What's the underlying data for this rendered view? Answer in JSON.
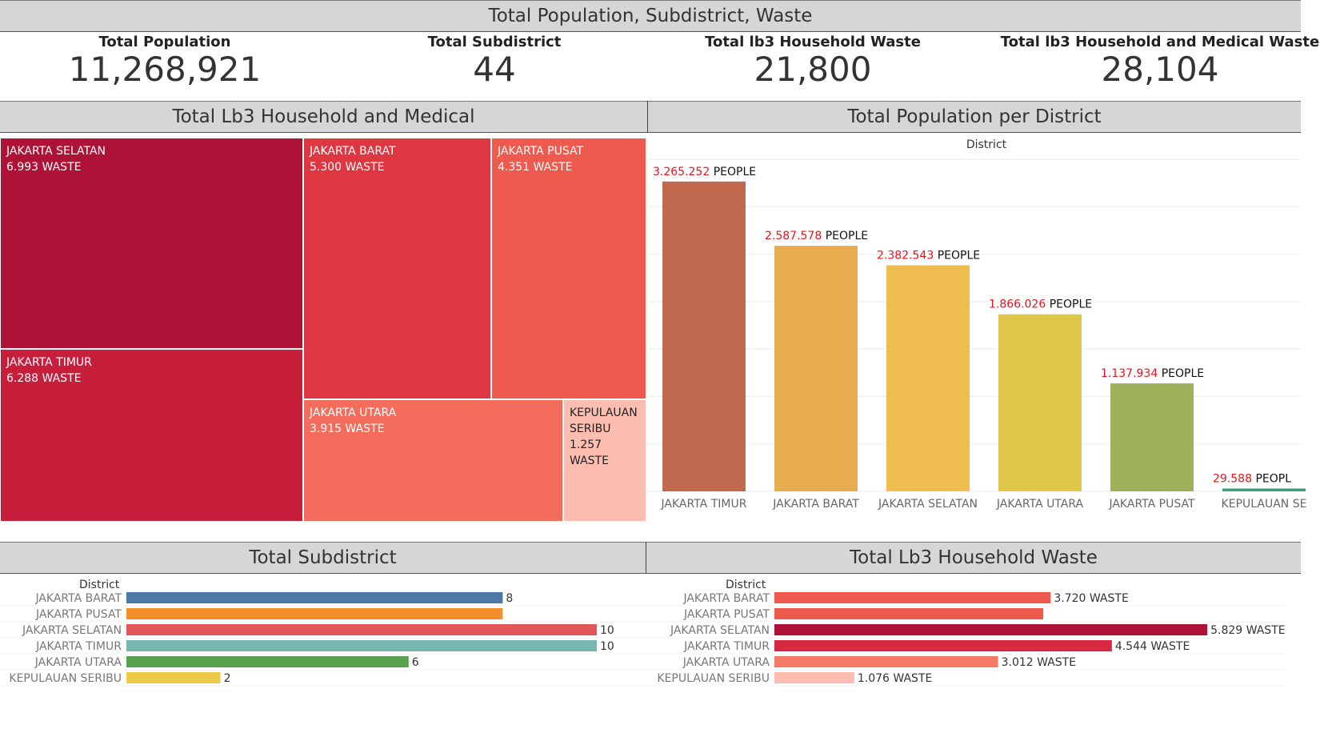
{
  "header": {
    "title": "Total Population, Subdistrict, Waste"
  },
  "kpis": [
    {
      "label": "Total Population",
      "value": "11,268,921"
    },
    {
      "label": "Total Subdistrict",
      "value": "44"
    },
    {
      "label": "Total lb3 Household Waste",
      "value": "21,800"
    },
    {
      "label": "Total lb3 Household and Medical Waste",
      "value": "28,104"
    }
  ],
  "panels": {
    "treemap_title": "Total Lb3 Household and Medical",
    "population_title": "Total Population per District",
    "subdistrict_title": "Total Subdistrict",
    "waste_title": "Total Lb3 Household Waste"
  },
  "colors": {
    "header_bg": "#d6d6d6",
    "label_red": "#e8141d",
    "treemap": {
      "JAKARTA SELATAN": "#ae1236",
      "JAKARTA TIMUR": "#c61e3b",
      "JAKARTA BARAT": "#df3742",
      "JAKARTA PUSAT": "#ee5a4d",
      "JAKARTA UTARA": "#f46c5c",
      "KEPULAUAN SERIBU": "#fdbdb0"
    }
  },
  "chart_data": [
    {
      "type": "treemap",
      "title": "Total Lb3 Household and Medical",
      "categories": [
        "JAKARTA SELATAN",
        "JAKARTA TIMUR",
        "JAKARTA BARAT",
        "JAKARTA PUSAT",
        "JAKARTA UTARA",
        "KEPULAUAN SERIBU"
      ],
      "values": [
        6993,
        6288,
        5300,
        4351,
        3915,
        1257
      ],
      "labels": [
        "6.993 WASTE",
        "6.288 WASTE",
        "5.300 WASTE",
        "4.351 WASTE",
        "3.915 WASTE",
        "1.257 WASTE"
      ]
    },
    {
      "type": "bar",
      "title": "Total Population per District",
      "xlabel": "District",
      "categories": [
        "JAKARTA TIMUR",
        "JAKARTA BARAT",
        "JAKARTA SELATAN",
        "JAKARTA UTARA",
        "JAKARTA PUSAT",
        "KEPULAUAN SE"
      ],
      "values": [
        3265252,
        2587578,
        2382543,
        1866026,
        1137934,
        29588
      ],
      "value_labels": [
        "3.265.252",
        "2.587.578",
        "2.382.543",
        "1.866.026",
        "1.137.934",
        "29.588"
      ],
      "value_suffixes": [
        "PEOPLE",
        "PEOPLE",
        "PEOPLE",
        "PEOPLE",
        "PEOPLE",
        "PEOPL"
      ],
      "colors": [
        "#c16a50",
        "#e8ad4f",
        "#efbd4f",
        "#dfc749",
        "#9eb05a",
        "#3d9e7e"
      ],
      "grid": true,
      "ylim": [
        0,
        3500000
      ]
    },
    {
      "type": "bar",
      "orientation": "horizontal",
      "title": "Total Subdistrict",
      "ylabel": "District",
      "categories": [
        "JAKARTA BARAT",
        "JAKARTA PUSAT",
        "JAKARTA SELATAN",
        "JAKARTA TIMUR",
        "JAKARTA UTARA",
        "KEPULAUAN SERIBU"
      ],
      "values": [
        8,
        8,
        10,
        10,
        6,
        2
      ],
      "value_labels": [
        "8",
        "",
        "10",
        "10",
        "6",
        "2"
      ],
      "colors": [
        "#4e79a7",
        "#f28e2b",
        "#e15759",
        "#76b7b2",
        "#59a14f",
        "#edc948"
      ],
      "xlim": [
        0,
        10
      ]
    },
    {
      "type": "bar",
      "orientation": "horizontal",
      "title": "Total Lb3 Household Waste",
      "ylabel": "District",
      "categories": [
        "JAKARTA BARAT",
        "JAKARTA PUSAT",
        "JAKARTA SELATAN",
        "JAKARTA TIMUR",
        "JAKARTA UTARA",
        "KEPULAUAN SERIBU"
      ],
      "values": [
        3720,
        3620,
        5829,
        4544,
        3012,
        1076
      ],
      "value_labels": [
        "3.720 WASTE",
        "",
        "5.829 WASTE",
        "4.544 WASTE",
        "3.012 WASTE",
        "1.076 WASTE"
      ],
      "colors": [
        "#ee5a4d",
        "#ee5a4d",
        "#ae1236",
        "#d72a41",
        "#f47a66",
        "#fdbdb0"
      ],
      "xlim": [
        0,
        6000
      ]
    }
  ]
}
